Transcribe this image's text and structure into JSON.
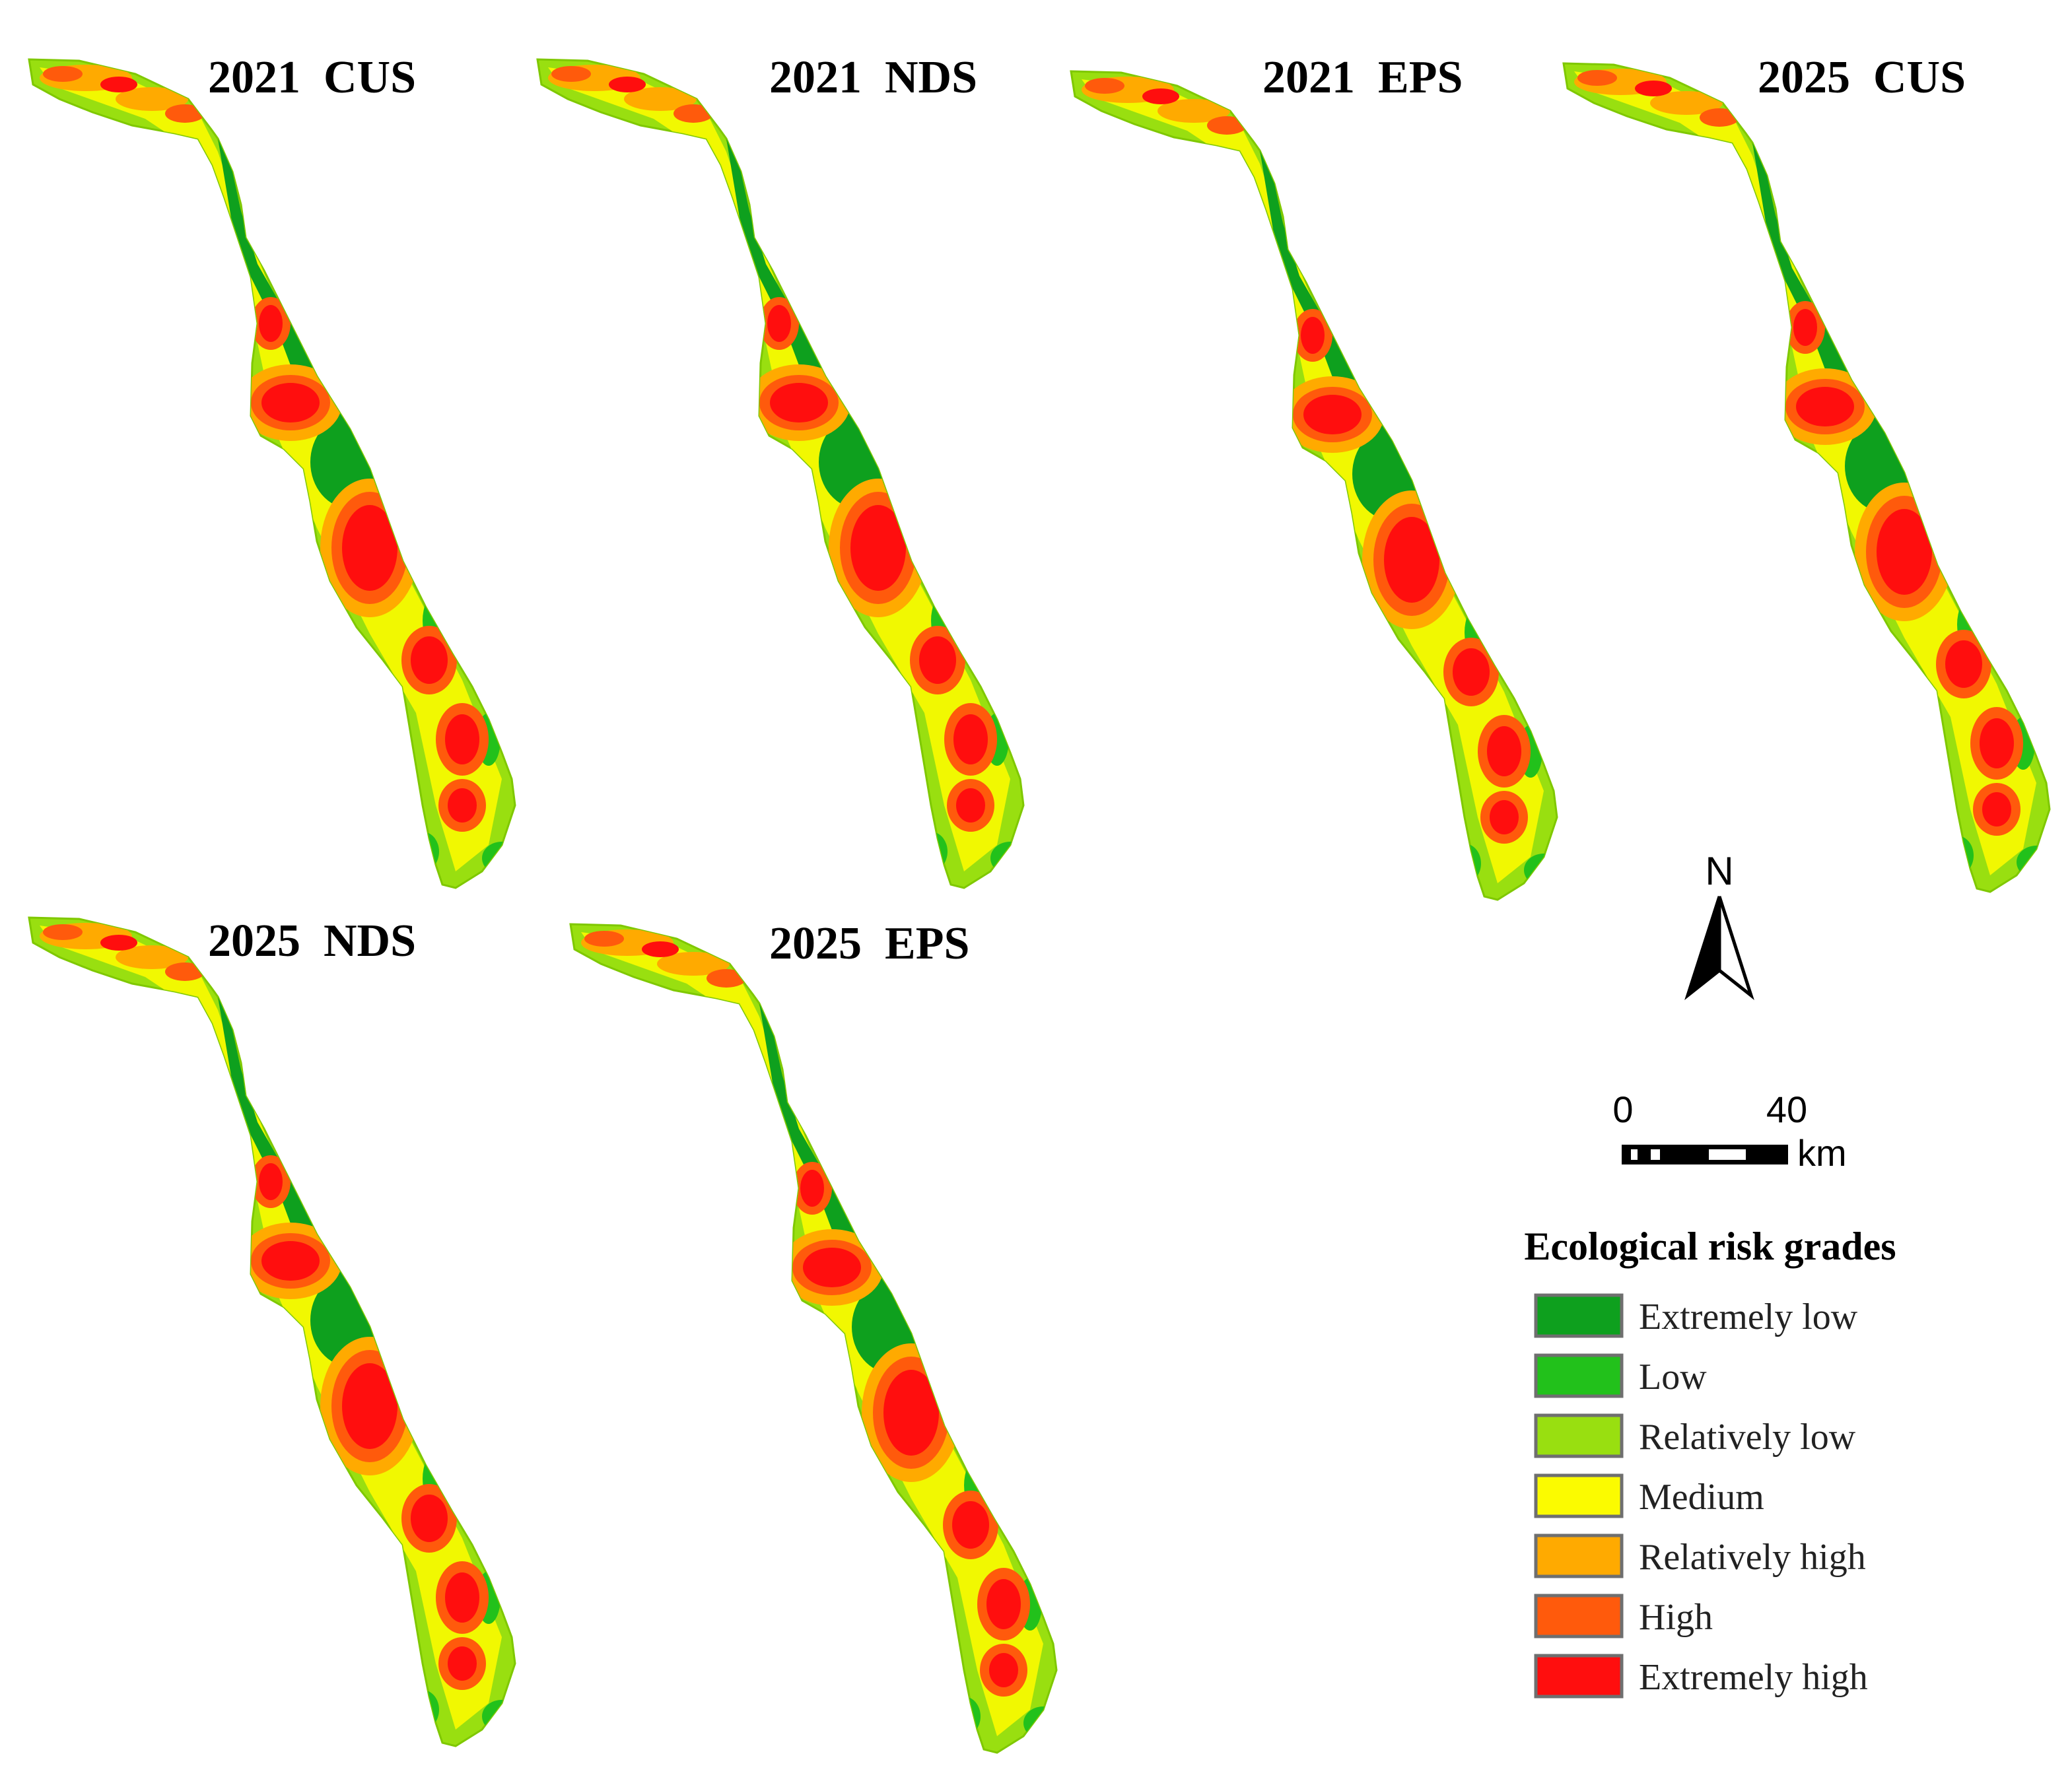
{
  "colors": {
    "extremely_low": "#0ea01e",
    "low": "#22c11b",
    "relatively_low": "#99df10",
    "medium": "#fbfb00",
    "relatively_high": "#ffaa00",
    "high": "#ff5a0c",
    "extremely_high": "#ff0e0e"
  },
  "maps": [
    {
      "title": "2021  CUS"
    },
    {
      "title": "2021  NDS"
    },
    {
      "title": "2021  EPS"
    },
    {
      "title": "2025  CUS"
    },
    {
      "title": "2025  NDS"
    },
    {
      "title": "2025  EPS"
    }
  ],
  "north_arrow": {
    "label": "N"
  },
  "scale_bar": {
    "start": "0",
    "end": "40",
    "unit": "km"
  },
  "legend": {
    "title": "Ecological risk grades",
    "items": [
      {
        "label": "Extremely low",
        "color": "#0ea01e"
      },
      {
        "label": "Low",
        "color": "#22c11b"
      },
      {
        "label": "Relatively low",
        "color": "#99df10"
      },
      {
        "label": "Medium",
        "color": "#fbfb00"
      },
      {
        "label": "Relatively high",
        "color": "#ffaa00"
      },
      {
        "label": "High",
        "color": "#ff5a0c"
      },
      {
        "label": "Extremely high",
        "color": "#ff0e0e"
      }
    ]
  }
}
